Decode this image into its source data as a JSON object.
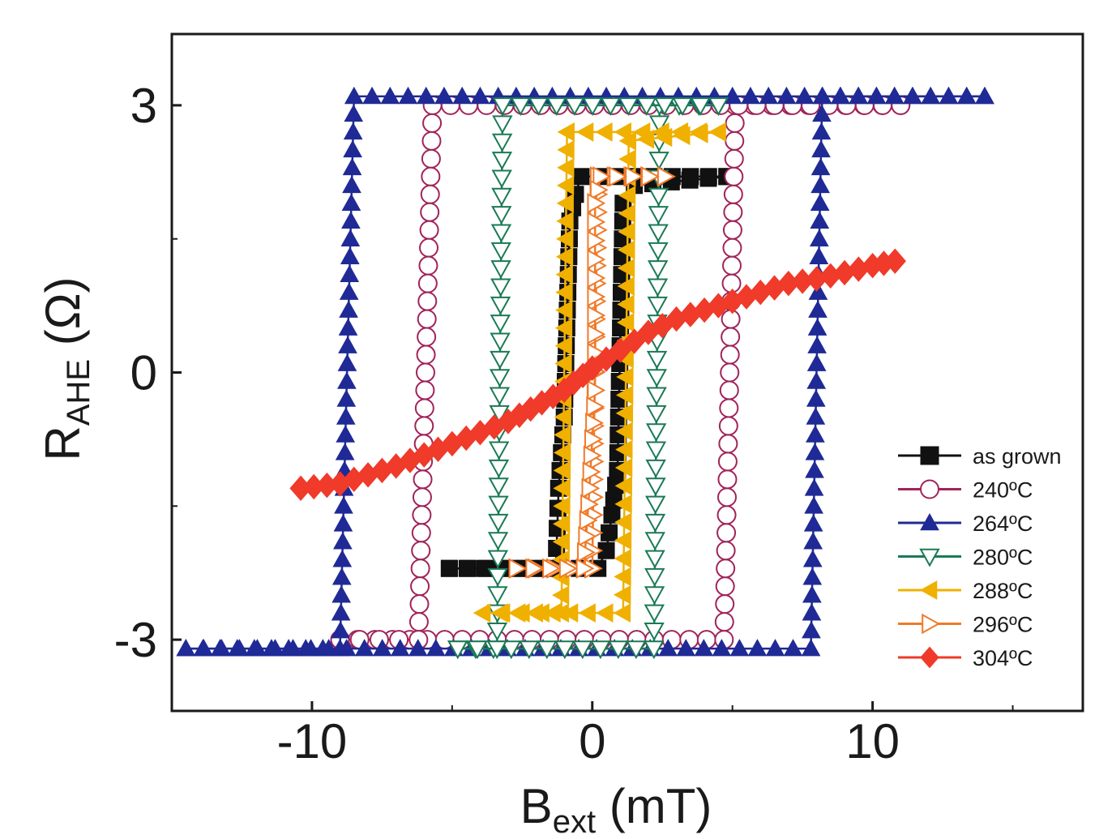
{
  "chart_data": {
    "type": "line",
    "title": "",
    "xlabel": {
      "main": "B",
      "sub": "ext",
      "unit": " (mT)"
    },
    "ylabel": {
      "main": "R",
      "sub": "AHE",
      "unit": " (Ω)"
    },
    "xlim": [
      -15,
      17.5
    ],
    "ylim": [
      -3.8,
      3.8
    ],
    "xticks": [
      -10,
      0,
      10
    ],
    "xtick_labels": [
      "-10",
      "0",
      "10"
    ],
    "yticks": [
      -3,
      0,
      3
    ],
    "ytick_labels": [
      "-3",
      "0",
      "3"
    ],
    "grid": false,
    "legend_position": "bottom-right",
    "series": [
      {
        "name": "as grown",
        "color": "#111111",
        "marker": "square",
        "filled": true,
        "up": [
          [
            -5.1,
            -2.2
          ],
          [
            0.2,
            -2.2
          ],
          [
            0.5,
            -2.0
          ],
          [
            0.7,
            -1.6
          ],
          [
            0.9,
            -1.1
          ],
          [
            1.1,
            1.9
          ],
          [
            1.5,
            2.1
          ],
          [
            4.8,
            2.2
          ]
        ],
        "down": [
          [
            4.8,
            2.2
          ],
          [
            -0.4,
            2.2
          ],
          [
            -0.6,
            2.0
          ],
          [
            -0.8,
            1.7
          ],
          [
            -1.0,
            -0.5
          ],
          [
            -1.2,
            -1.3
          ],
          [
            -1.3,
            -2.2
          ],
          [
            -5.1,
            -2.2
          ]
        ]
      },
      {
        "name": "240ºC",
        "color": "#a0245a",
        "marker": "circle",
        "filled": false,
        "up": [
          [
            -9.0,
            -3.0
          ],
          [
            4.7,
            -3.0
          ],
          [
            5.1,
            3.0
          ],
          [
            11.0,
            3.0
          ]
        ],
        "down": [
          [
            11.0,
            3.0
          ],
          [
            -5.7,
            3.0
          ],
          [
            -6.2,
            -3.0
          ],
          [
            -9.0,
            -3.0
          ]
        ]
      },
      {
        "name": "264ºC",
        "color": "#1f2a96",
        "marker": "triangle-up",
        "filled": true,
        "up": [
          [
            -14.5,
            -3.1
          ],
          [
            7.8,
            -3.1
          ],
          [
            8.2,
            3.1
          ],
          [
            14.0,
            3.1
          ]
        ],
        "down": [
          [
            14.0,
            3.1
          ],
          [
            -8.5,
            3.1
          ],
          [
            -9.0,
            -3.1
          ],
          [
            -14.5,
            -3.1
          ]
        ]
      },
      {
        "name": "280ºC",
        "color": "#1a7a55",
        "marker": "triangle-down",
        "filled": false,
        "up": [
          [
            -4.8,
            -3.1
          ],
          [
            2.2,
            -3.1
          ],
          [
            2.4,
            3.0
          ],
          [
            4.5,
            3.0
          ]
        ],
        "down": [
          [
            4.5,
            3.0
          ],
          [
            -3.2,
            3.0
          ],
          [
            -3.4,
            -3.1
          ],
          [
            -4.8,
            -3.1
          ]
        ]
      },
      {
        "name": "288ºC",
        "color": "#f0b000",
        "marker": "triangle-left",
        "filled": true,
        "up": [
          [
            -3.9,
            -2.7
          ],
          [
            1.1,
            -2.7
          ],
          [
            1.3,
            2.6
          ],
          [
            4.5,
            2.7
          ]
        ],
        "down": [
          [
            4.5,
            2.7
          ],
          [
            -0.9,
            2.7
          ],
          [
            -1.1,
            -2.7
          ],
          [
            -3.9,
            -2.7
          ]
        ]
      },
      {
        "name": "296ºC",
        "color": "#f07a2a",
        "marker": "triangle-right",
        "filled": false,
        "up": [
          [
            -2.7,
            -2.2
          ],
          [
            0.0,
            -2.2
          ],
          [
            0.1,
            0.2
          ],
          [
            0.2,
            2.2
          ],
          [
            2.6,
            2.2
          ]
        ],
        "down": [
          [
            2.6,
            2.2
          ],
          [
            0.3,
            2.2
          ],
          [
            0.1,
            1.9
          ],
          [
            0.1,
            -0.2
          ],
          [
            -0.1,
            -1.3
          ],
          [
            -0.3,
            -2.2
          ],
          [
            -2.7,
            -2.2
          ]
        ]
      },
      {
        "name": "304ºC",
        "color": "#f03a2a",
        "marker": "diamond",
        "filled": true,
        "up": [
          [
            -10.4,
            -1.3
          ],
          [
            -9.0,
            -1.25
          ],
          [
            -7.0,
            -1.05
          ],
          [
            -5.0,
            -0.8
          ],
          [
            -3.0,
            -0.55
          ],
          [
            -1.0,
            -0.2
          ],
          [
            0.0,
            0.05
          ],
          [
            1.0,
            0.25
          ],
          [
            2.0,
            0.45
          ],
          [
            3.0,
            0.6
          ],
          [
            4.0,
            0.7
          ],
          [
            5.0,
            0.8
          ],
          [
            6.0,
            0.9
          ],
          [
            7.0,
            1.0
          ],
          [
            8.0,
            1.05
          ],
          [
            9.0,
            1.12
          ],
          [
            10.0,
            1.2
          ],
          [
            10.8,
            1.25
          ]
        ],
        "down": []
      }
    ]
  }
}
